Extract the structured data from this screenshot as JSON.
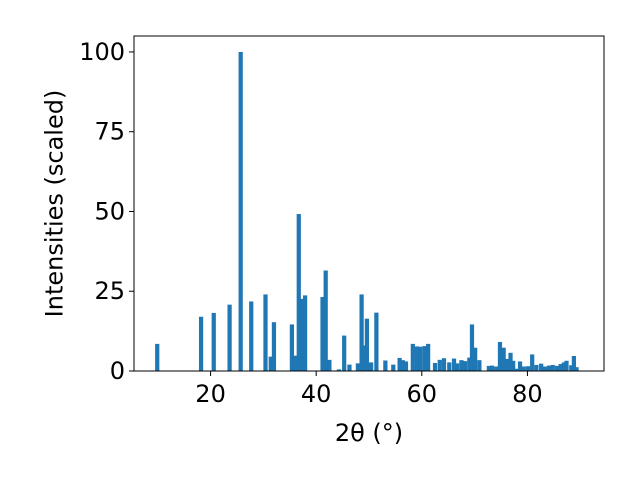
{
  "chart_data": {
    "type": "bar",
    "title": "",
    "xlabel": "2θ (°)",
    "ylabel": "Intensities (scaled)",
    "xlim": [
      5.5,
      94.5
    ],
    "ylim": [
      0,
      105
    ],
    "xticks": [
      20,
      40,
      60,
      80
    ],
    "yticks": [
      0,
      25,
      50,
      75,
      100
    ],
    "grid": false,
    "bar_color": "#1f77b4",
    "bar_width": 0.8,
    "series": [
      {
        "x": [
          9.9,
          18.2,
          20.6,
          23.6,
          25.7,
          27.7,
          30.4,
          31.4,
          32.0,
          35.4,
          36.1,
          36.7,
          37.3,
          37.9,
          41.2,
          41.8,
          42.5,
          44.3,
          45.3,
          46.3,
          47.9,
          48.6,
          49.1,
          49.6,
          50.4,
          51.4,
          53.1,
          54.6,
          55.8,
          56.4,
          57.0,
          58.3,
          59.1,
          59.7,
          60.5,
          61.2,
          62.5,
          63.4,
          64.2,
          65.2,
          66.1,
          66.7,
          67.5,
          68.2,
          69.0,
          69.5,
          70.1,
          70.9,
          72.7,
          73.3,
          74.1,
          74.8,
          75.5,
          76.1,
          76.8,
          77.3,
          77.9,
          78.6,
          79.3,
          80.1,
          80.9,
          81.7,
          82.6,
          83.3,
          84.1,
          84.8,
          85.6,
          86.3,
          86.9,
          87.4,
          88.3,
          88.8,
          89.3
        ],
        "values": [
          8.5,
          17.0,
          18.2,
          20.8,
          100.0,
          21.8,
          24.0,
          4.5,
          15.3,
          14.6,
          4.8,
          49.2,
          22.6,
          23.7,
          23.2,
          31.5,
          3.5,
          0.5,
          11.1,
          2.0,
          2.4,
          24.0,
          8.0,
          16.4,
          2.7,
          18.3,
          3.3,
          2.0,
          4.1,
          3.4,
          3.0,
          8.5,
          7.7,
          7.6,
          7.8,
          8.5,
          2.5,
          3.5,
          4.0,
          2.7,
          3.9,
          2.4,
          3.4,
          3.1,
          4.2,
          14.6,
          7.3,
          3.4,
          1.6,
          1.7,
          1.4,
          9.1,
          7.3,
          3.8,
          5.7,
          3.2,
          0.7,
          3.0,
          1.4,
          1.5,
          5.2,
          1.9,
          2.3,
          1.4,
          1.7,
          1.9,
          1.6,
          2.2,
          2.7,
          3.2,
          1.8,
          4.7,
          1.2
        ]
      }
    ]
  }
}
